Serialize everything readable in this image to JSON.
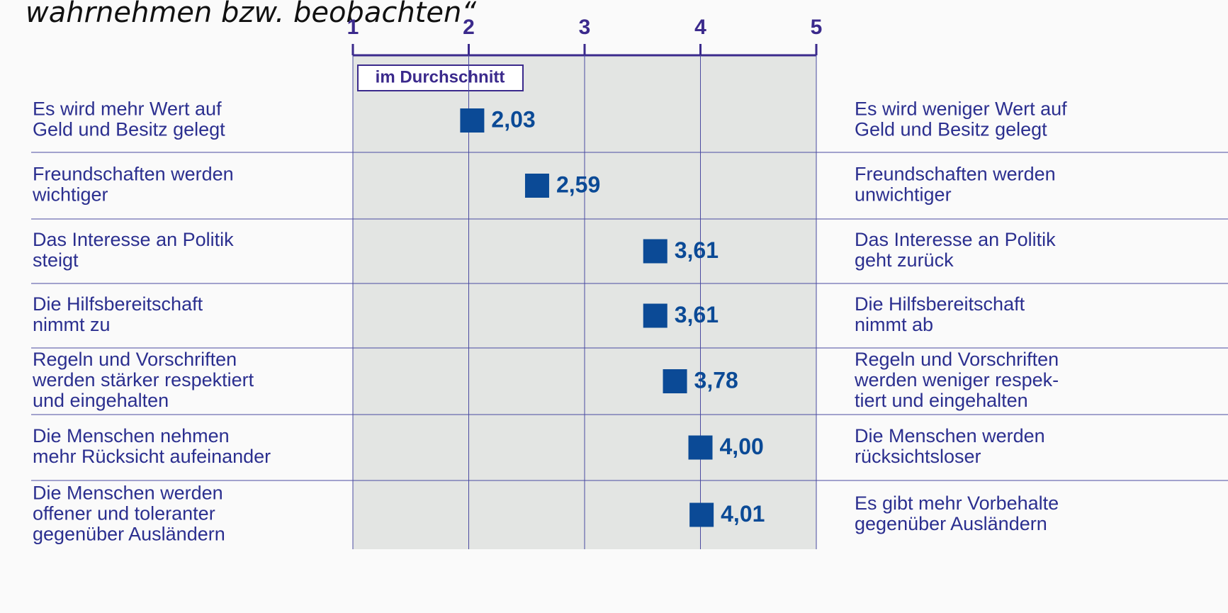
{
  "chart_data": {
    "type": "dot",
    "title": "wahrnehmen bzw. beobachten“",
    "legend": "im Durchschnitt",
    "left_labels": [
      [
        "Es wird mehr Wert auf",
        "Geld und Besitz gelegt"
      ],
      [
        "Freundschaften werden",
        "wichtiger"
      ],
      [
        "Das Interesse an Politik",
        "steigt"
      ],
      [
        "Die Hilfsbereitschaft",
        "nimmt zu"
      ],
      [
        "Regeln und Vorschriften",
        "werden stärker respektiert",
        "und eingehalten"
      ],
      [
        "Die Menschen nehmen",
        "mehr Rücksicht aufeinander"
      ],
      [
        "Die Menschen werden",
        "offener und toleranter",
        "gegenüber Ausländern"
      ]
    ],
    "right_labels": [
      [
        "Es wird weniger Wert auf",
        "Geld und Besitz gelegt"
      ],
      [
        "Freundschaften werden",
        "unwichtiger"
      ],
      [
        "Das Interesse an Politik",
        "geht zurück"
      ],
      [
        "Die Hilfsbereitschaft",
        "nimmt ab"
      ],
      [
        "Regeln und Vorschriften",
        "werden weniger respek-",
        "tiert und eingehalten"
      ],
      [
        "Die Menschen werden",
        "rücksichtsloser"
      ],
      [
        "Es gibt mehr Vorbehalte",
        "gegenüber Ausländern"
      ]
    ],
    "values": [
      2.03,
      2.59,
      3.61,
      3.61,
      3.78,
      4.0,
      4.01
    ],
    "value_labels": [
      "2,03",
      "2,59",
      "3,61",
      "3,61",
      "3,78",
      "4,00",
      "4,01"
    ],
    "color": "#0b4a96",
    "xlim": [
      1,
      5
    ],
    "xticks": [
      1,
      2,
      3,
      4,
      5
    ],
    "grid": true
  }
}
